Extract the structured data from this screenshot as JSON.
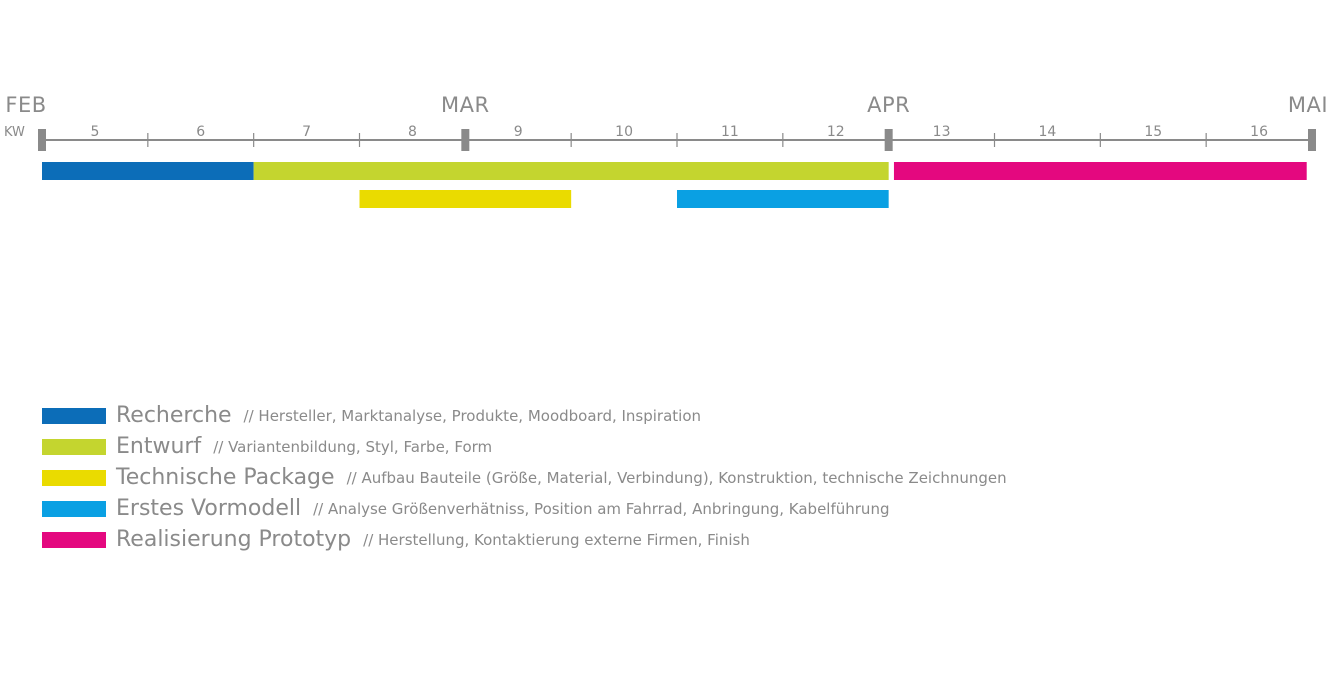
{
  "chart_data": {
    "type": "gantt",
    "axis_prefix": "KW",
    "months": [
      "FEB",
      "MAR",
      "APR",
      "MAI"
    ],
    "month_boundaries": [
      4.5,
      8.5,
      12.5,
      16.5
    ],
    "weeks": [
      "5",
      "6",
      "7",
      "8",
      "9",
      "10",
      "11",
      "12",
      "13",
      "14",
      "15",
      "16"
    ],
    "x_range": [
      4.5,
      16.5
    ],
    "tasks": [
      {
        "phase": "Recherche",
        "start": 4.5,
        "end": 6.5,
        "row": 0,
        "color": "#0c6db8"
      },
      {
        "phase": "Entwurf",
        "start": 6.5,
        "end": 12.5,
        "row": 0,
        "color": "#c4d52f"
      },
      {
        "phase": "Realisierung Prototyp",
        "start": 12.55,
        "end": 16.45,
        "row": 0,
        "color": "#e4087f"
      },
      {
        "phase": "Technische Package",
        "start": 7.5,
        "end": 9.5,
        "row": 1,
        "color": "#eadb00"
      },
      {
        "phase": "Erstes Vormodell",
        "start": 10.5,
        "end": 12.5,
        "row": 1,
        "color": "#0aa0e3"
      }
    ]
  },
  "legend": [
    {
      "name": "Recherche",
      "desc": "// Hersteller, Marktanalyse, Produkte, Moodboard, Inspiration",
      "color": "#0c6db8"
    },
    {
      "name": "Entwurf",
      "desc": "// Variantenbildung, Styl, Farbe, Form",
      "color": "#c4d52f"
    },
    {
      "name": "Technische Package",
      "desc": "// Aufbau Bauteile (Größe, Material, Verbindung), Konstruktion, technische Zeichnungen",
      "color": "#eadb00"
    },
    {
      "name": "Erstes Vormodell",
      "desc": "// Analyse Größenverhätniss, Position am Fahrrad, Anbringung, Kabelführung",
      "color": "#0aa0e3"
    },
    {
      "name": "Realisierung Prototyp",
      "desc": "// Herstellung, Kontaktierung externe Firmen, Finish",
      "color": "#e4087f"
    }
  ],
  "colors": {
    "axis": "#8a8a8a",
    "text": "#8a8a8a"
  }
}
